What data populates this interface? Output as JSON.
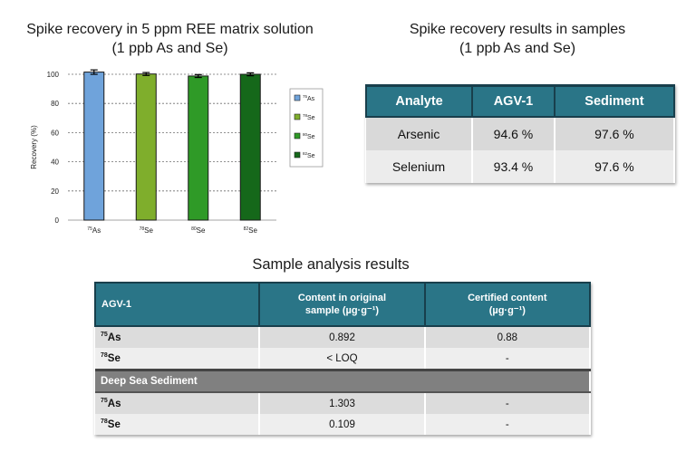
{
  "chart_data": {
    "type": "bar",
    "title": [
      "Spike recovery in 5 ppm REE matrix solution",
      "(1 ppb As and Se)"
    ],
    "ylabel": "Recovery (%)",
    "xlabel": "",
    "ylim": [
      0,
      100
    ],
    "yticks": [
      0,
      20,
      40,
      60,
      80,
      100
    ],
    "grid": true,
    "legend_position": "right",
    "categories": [
      {
        "mass": "75",
        "element": "As"
      },
      {
        "mass": "78",
        "element": "Se"
      },
      {
        "mass": "80",
        "element": "Se"
      },
      {
        "mass": "82",
        "element": "Se"
      }
    ],
    "values": [
      101.5,
      100.2,
      98.8,
      100.0
    ],
    "errors": [
      1.5,
      1.0,
      1.0,
      1.0
    ],
    "colors": [
      "#6fa3db",
      "#7fae2c",
      "#2f9a27",
      "#15681a"
    ],
    "legend": [
      {
        "mass": "75",
        "element": "As"
      },
      {
        "mass": "78",
        "element": "Se"
      },
      {
        "mass": "80",
        "element": "Se"
      },
      {
        "mass": "82",
        "element": "Se"
      }
    ]
  },
  "spike_table": {
    "title": [
      "Spike recovery results in samples",
      "(1 ppb As and Se)"
    ],
    "headers": [
      "Analyte",
      "AGV-1",
      "Sediment"
    ],
    "rows": [
      [
        "Arsenic",
        "94.6 %",
        "97.6 %"
      ],
      [
        "Selenium",
        "93.4 %",
        "97.6 %"
      ]
    ]
  },
  "sample_table": {
    "title": "Sample analysis results",
    "header": {
      "group": "AGV-1",
      "col1": [
        "Content in original",
        "sample (µg·g⁻¹)"
      ],
      "col2": [
        "Certified content",
        "(µg·g⁻¹)"
      ]
    },
    "rows_agv": [
      {
        "mass": "75",
        "element": "As",
        "content": "0.892",
        "certified": "0.88"
      },
      {
        "mass": "78",
        "element": "Se",
        "content": "< LOQ",
        "certified": "-"
      }
    ],
    "group2": "Deep Sea Sediment",
    "rows_sed": [
      {
        "mass": "75",
        "element": "As",
        "content": "1.303",
        "certified": "-"
      },
      {
        "mass": "78",
        "element": "Se",
        "content": "0.109",
        "certified": "-"
      }
    ]
  }
}
